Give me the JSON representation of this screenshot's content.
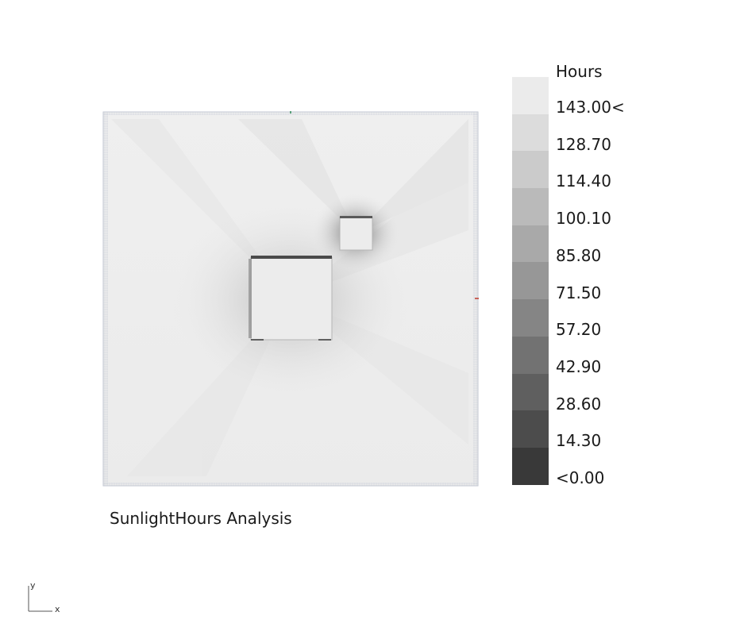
{
  "legend": {
    "title": "Hours",
    "labels": [
      "143.00<",
      "128.70",
      "114.40",
      "100.10",
      "85.80",
      "71.50",
      "57.20",
      "42.90",
      "28.60",
      "14.30",
      "<0.00"
    ],
    "colors": [
      "#ebebeb",
      "#dcdcdc",
      "#cbcbcb",
      "#bababa",
      "#a9a9a9",
      "#979797",
      "#858585",
      "#727272",
      "#5f5f5f",
      "#4c4c4c",
      "#393939"
    ]
  },
  "caption": "SunlightHours Analysis",
  "axes": {
    "x": "x",
    "y": "y"
  }
}
